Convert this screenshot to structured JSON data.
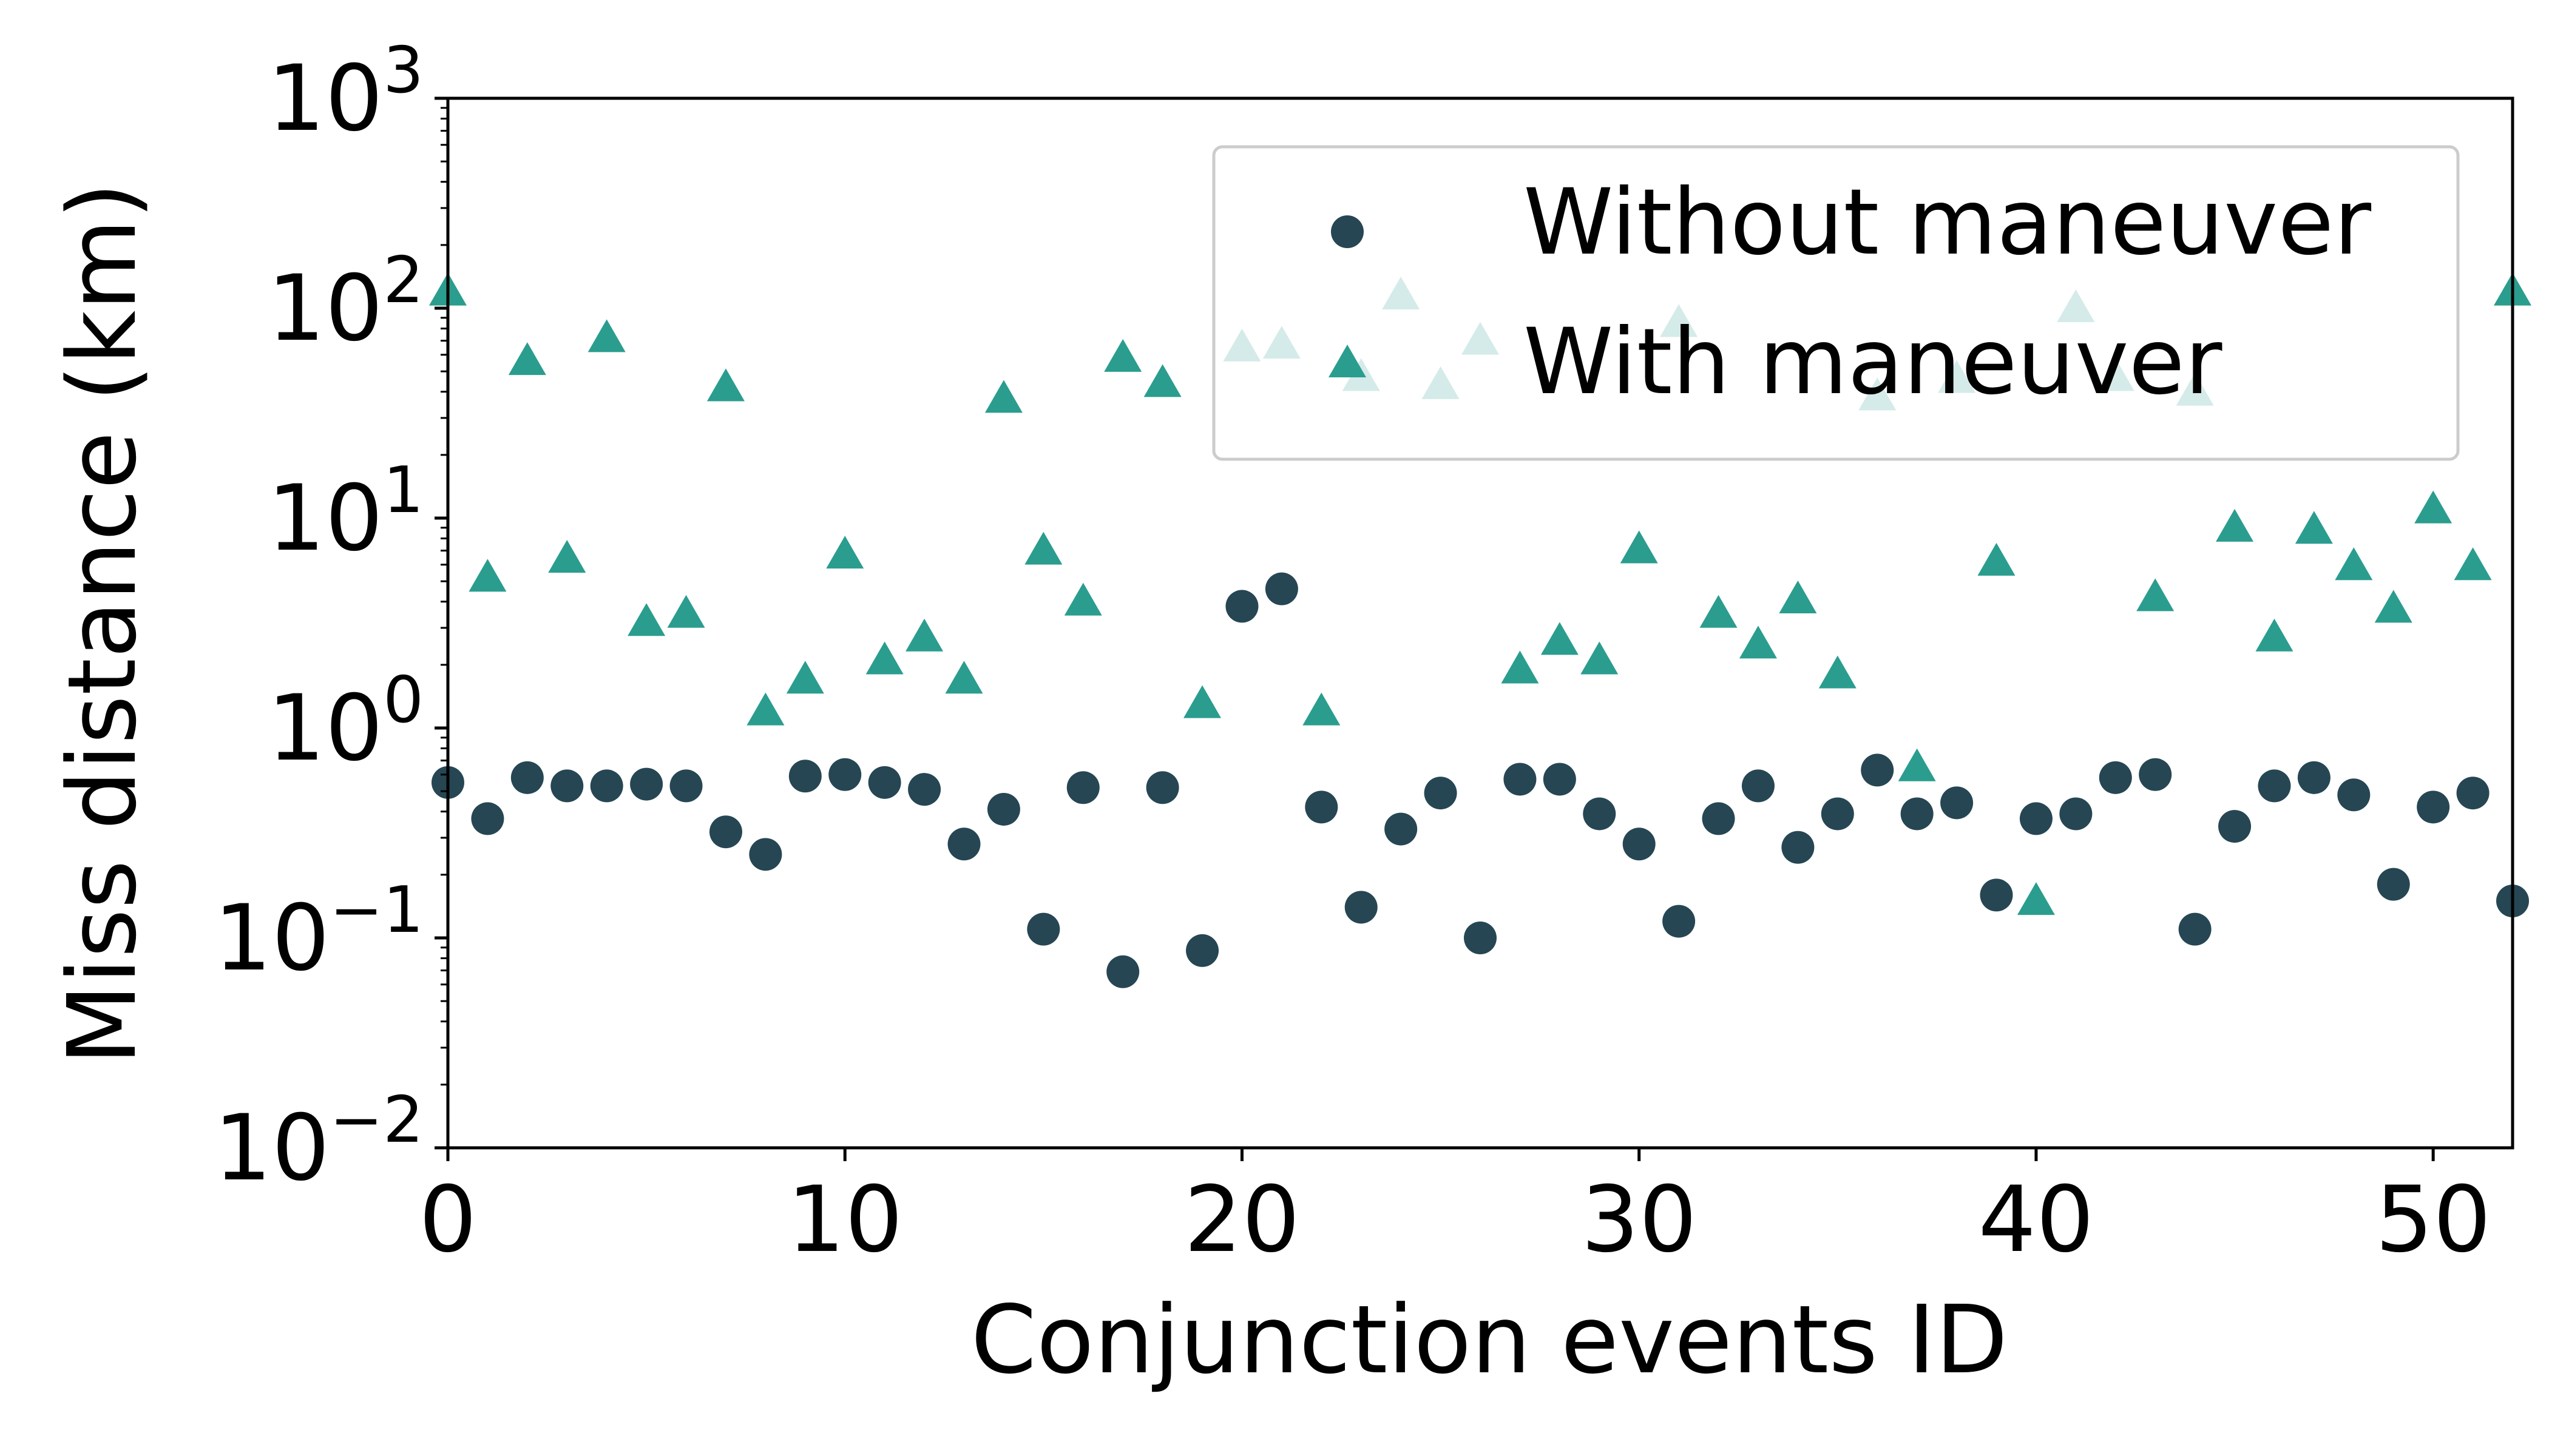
{
  "chart_data": {
    "type": "scatter",
    "xlabel": "Conjunction events ID",
    "ylabel": "Miss distance (km)",
    "xlim": [
      0,
      52
    ],
    "ylim": [
      0.01,
      1000
    ],
    "yscale": "log",
    "xticks": [
      0,
      10,
      20,
      30,
      40,
      50
    ],
    "yticks": [
      {
        "value": 0.01,
        "base": "10",
        "exp": "−2"
      },
      {
        "value": 0.1,
        "base": "10",
        "exp": "−1"
      },
      {
        "value": 1,
        "base": "10",
        "exp": "0"
      },
      {
        "value": 10,
        "base": "10",
        "exp": "1"
      },
      {
        "value": 100,
        "base": "10",
        "exp": "2"
      },
      {
        "value": 1000,
        "base": "10",
        "exp": "3"
      }
    ],
    "grid": false,
    "legend_position": "top-right",
    "x": [
      0,
      1,
      2,
      3,
      4,
      5,
      6,
      7,
      8,
      9,
      10,
      11,
      12,
      13,
      14,
      15,
      16,
      17,
      18,
      19,
      20,
      21,
      22,
      23,
      24,
      25,
      26,
      27,
      28,
      29,
      30,
      31,
      32,
      33,
      34,
      35,
      36,
      37,
      38,
      39,
      40,
      41,
      42,
      43,
      44,
      45,
      46,
      47,
      48,
      49,
      50,
      51,
      52
    ],
    "series": [
      {
        "name": "Without maneuver",
        "marker": "circle",
        "color": "#264653",
        "values": [
          0.55,
          0.37,
          0.58,
          0.53,
          0.53,
          0.54,
          0.53,
          0.32,
          0.25,
          0.59,
          0.6,
          0.55,
          0.51,
          0.28,
          0.41,
          0.11,
          0.52,
          0.069,
          0.52,
          0.087,
          3.8,
          4.6,
          0.42,
          0.14,
          0.33,
          0.49,
          0.1,
          0.57,
          0.57,
          0.39,
          0.28,
          0.12,
          0.37,
          0.53,
          0.27,
          0.39,
          0.63,
          0.39,
          0.44,
          0.16,
          0.37,
          0.39,
          0.58,
          0.6,
          0.11,
          0.34,
          0.53,
          0.58,
          0.48,
          0.18,
          0.42,
          0.49,
          0.15
        ]
      },
      {
        "name": "With maneuver",
        "marker": "triangle",
        "color": "#2a9d8f",
        "values": [
          120,
          5.2,
          56,
          6.4,
          72,
          3.2,
          3.5,
          42,
          1.2,
          1.7,
          6.7,
          2.1,
          2.7,
          1.7,
          37,
          7.0,
          4.0,
          58,
          44,
          1.3,
          65,
          67,
          1.2,
          47,
          115,
          43,
          70,
          1.9,
          2.6,
          2.1,
          7.1,
          85,
          3.5,
          2.5,
          4.1,
          1.8,
          38,
          0.65,
          46,
          6.2,
          0.15,
          100,
          47,
          4.2,
          40,
          9.0,
          2.7,
          8.8,
          5.9,
          3.7,
          11,
          5.9,
          120
        ]
      }
    ]
  }
}
